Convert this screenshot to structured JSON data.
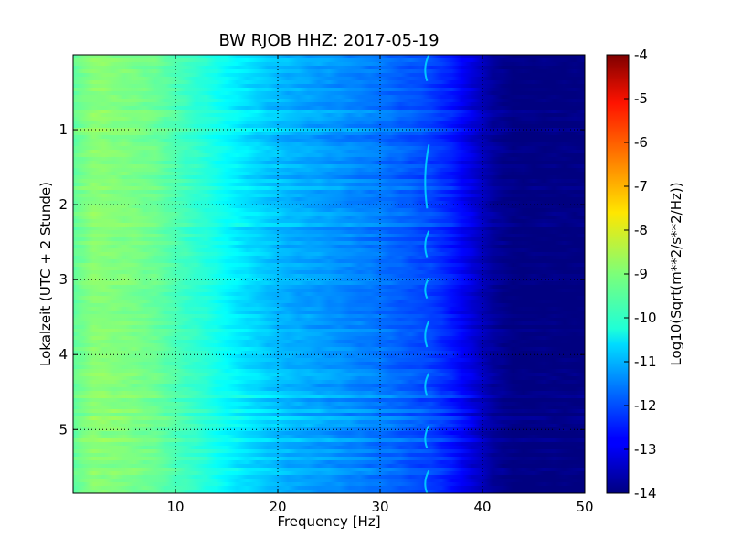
{
  "chart_data": {
    "type": "heatmap",
    "title": "BW RJOB HHZ: 2017-05-19",
    "xlabel": "Frequency [Hz]",
    "ylabel": "Lokalzeit (UTC + 2 Stunde)",
    "xlim": [
      0,
      50
    ],
    "ylim": [
      5.85,
      0
    ],
    "x_ticks": [
      "10",
      "20",
      "30",
      "40",
      "50"
    ],
    "y_ticks": [
      "1",
      "2",
      "3",
      "4",
      "5"
    ],
    "x_tick_values": [
      10,
      20,
      30,
      40,
      50
    ],
    "y_tick_values": [
      1,
      2,
      3,
      4,
      5
    ],
    "grid": true,
    "colormap": "jet",
    "colorbar": {
      "label": "Log10(Sqrt(m**2/s**2/Hz))",
      "vmin": -14,
      "vmax": -4,
      "ticks": [
        "-4",
        "-5",
        "-6",
        "-7",
        "-8",
        "-9",
        "-10",
        "-11",
        "-12",
        "-13",
        "-14"
      ],
      "tick_values": [
        -4,
        -5,
        -6,
        -7,
        -8,
        -9,
        -10,
        -11,
        -12,
        -13,
        -14
      ]
    },
    "frequency_profile": {
      "frequency_hz": [
        0,
        2,
        5,
        8,
        10,
        13,
        16,
        19,
        21,
        24,
        27,
        30,
        33,
        35,
        37,
        39,
        41,
        43,
        50
      ],
      "level": [
        -9.3,
        -8.9,
        -9.0,
        -9.2,
        -9.5,
        -9.9,
        -10.4,
        -10.8,
        -11.0,
        -11.2,
        -11.4,
        -11.6,
        -11.9,
        -12.1,
        -12.5,
        -13.1,
        -13.7,
        -14.0,
        -14.0
      ]
    },
    "tonal_line": {
      "frequency_hz": 34.5,
      "level": -10.8
    }
  }
}
